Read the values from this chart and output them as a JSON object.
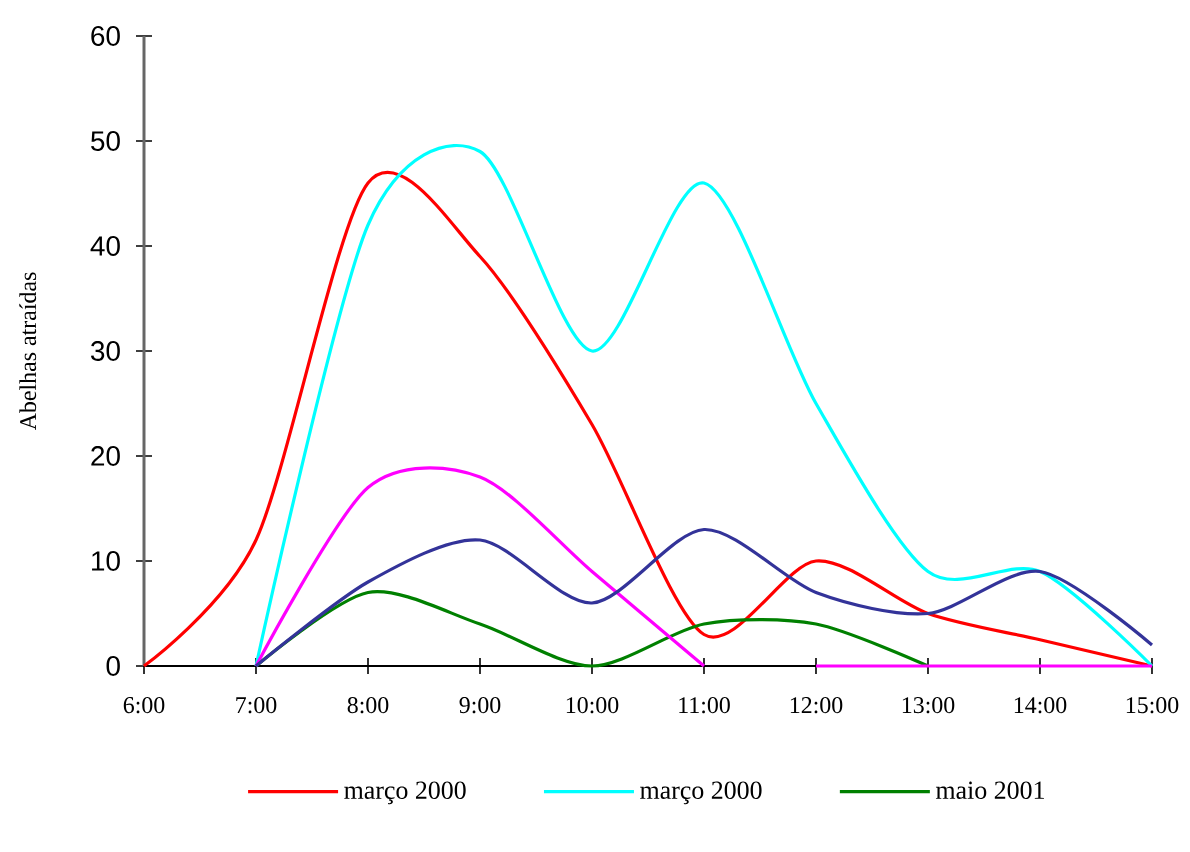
{
  "chart_data": {
    "type": "line",
    "ylabel": "Abelhas atraídas",
    "x": [
      6,
      7,
      8,
      9,
      10,
      11,
      12,
      13,
      14,
      15
    ],
    "xlim": [
      6,
      15
    ],
    "xticks": [
      {
        "value": 6,
        "label": "6:00"
      },
      {
        "value": 7,
        "label": "7:00"
      },
      {
        "value": 8,
        "label": "8:00"
      },
      {
        "value": 9,
        "label": "9:00"
      },
      {
        "value": 10,
        "label": "10:00"
      },
      {
        "value": 11,
        "label": "11:00"
      },
      {
        "value": 12,
        "label": "12:00"
      },
      {
        "value": 13,
        "label": "13:00"
      },
      {
        "value": 14,
        "label": "14:00"
      },
      {
        "value": 15,
        "label": "15:00"
      }
    ],
    "ylim": [
      0,
      60
    ],
    "yticks": [
      0,
      10,
      20,
      30,
      40,
      50,
      60
    ],
    "legend": "bottom",
    "marker": "none",
    "line_style": "solid",
    "series": [
      {
        "name": "março 2000",
        "color": "#ff0000",
        "values": [
          0,
          12,
          46,
          39,
          23,
          3,
          10,
          5,
          2.5,
          0
        ]
      },
      {
        "name": "março 2000",
        "color": "#00ffff",
        "values": [
          null,
          0,
          42,
          49,
          30,
          46,
          25,
          9,
          9,
          0
        ]
      },
      {
        "name": "maio 2001",
        "color": "#008000",
        "values": [
          null,
          0,
          7,
          4,
          0,
          4,
          4,
          0,
          null,
          null
        ]
      },
      {
        "color": "#ff00ff",
        "x": [
          7,
          8,
          9,
          10,
          11,
          11.5,
          12,
          13,
          14,
          15
        ],
        "values": [
          0,
          17,
          18,
          9,
          0,
          null,
          0,
          0,
          0,
          0
        ]
      },
      {
        "color": "#333399",
        "values": [
          null,
          0,
          8,
          12,
          6,
          13,
          7,
          5,
          9,
          2
        ]
      }
    ]
  }
}
